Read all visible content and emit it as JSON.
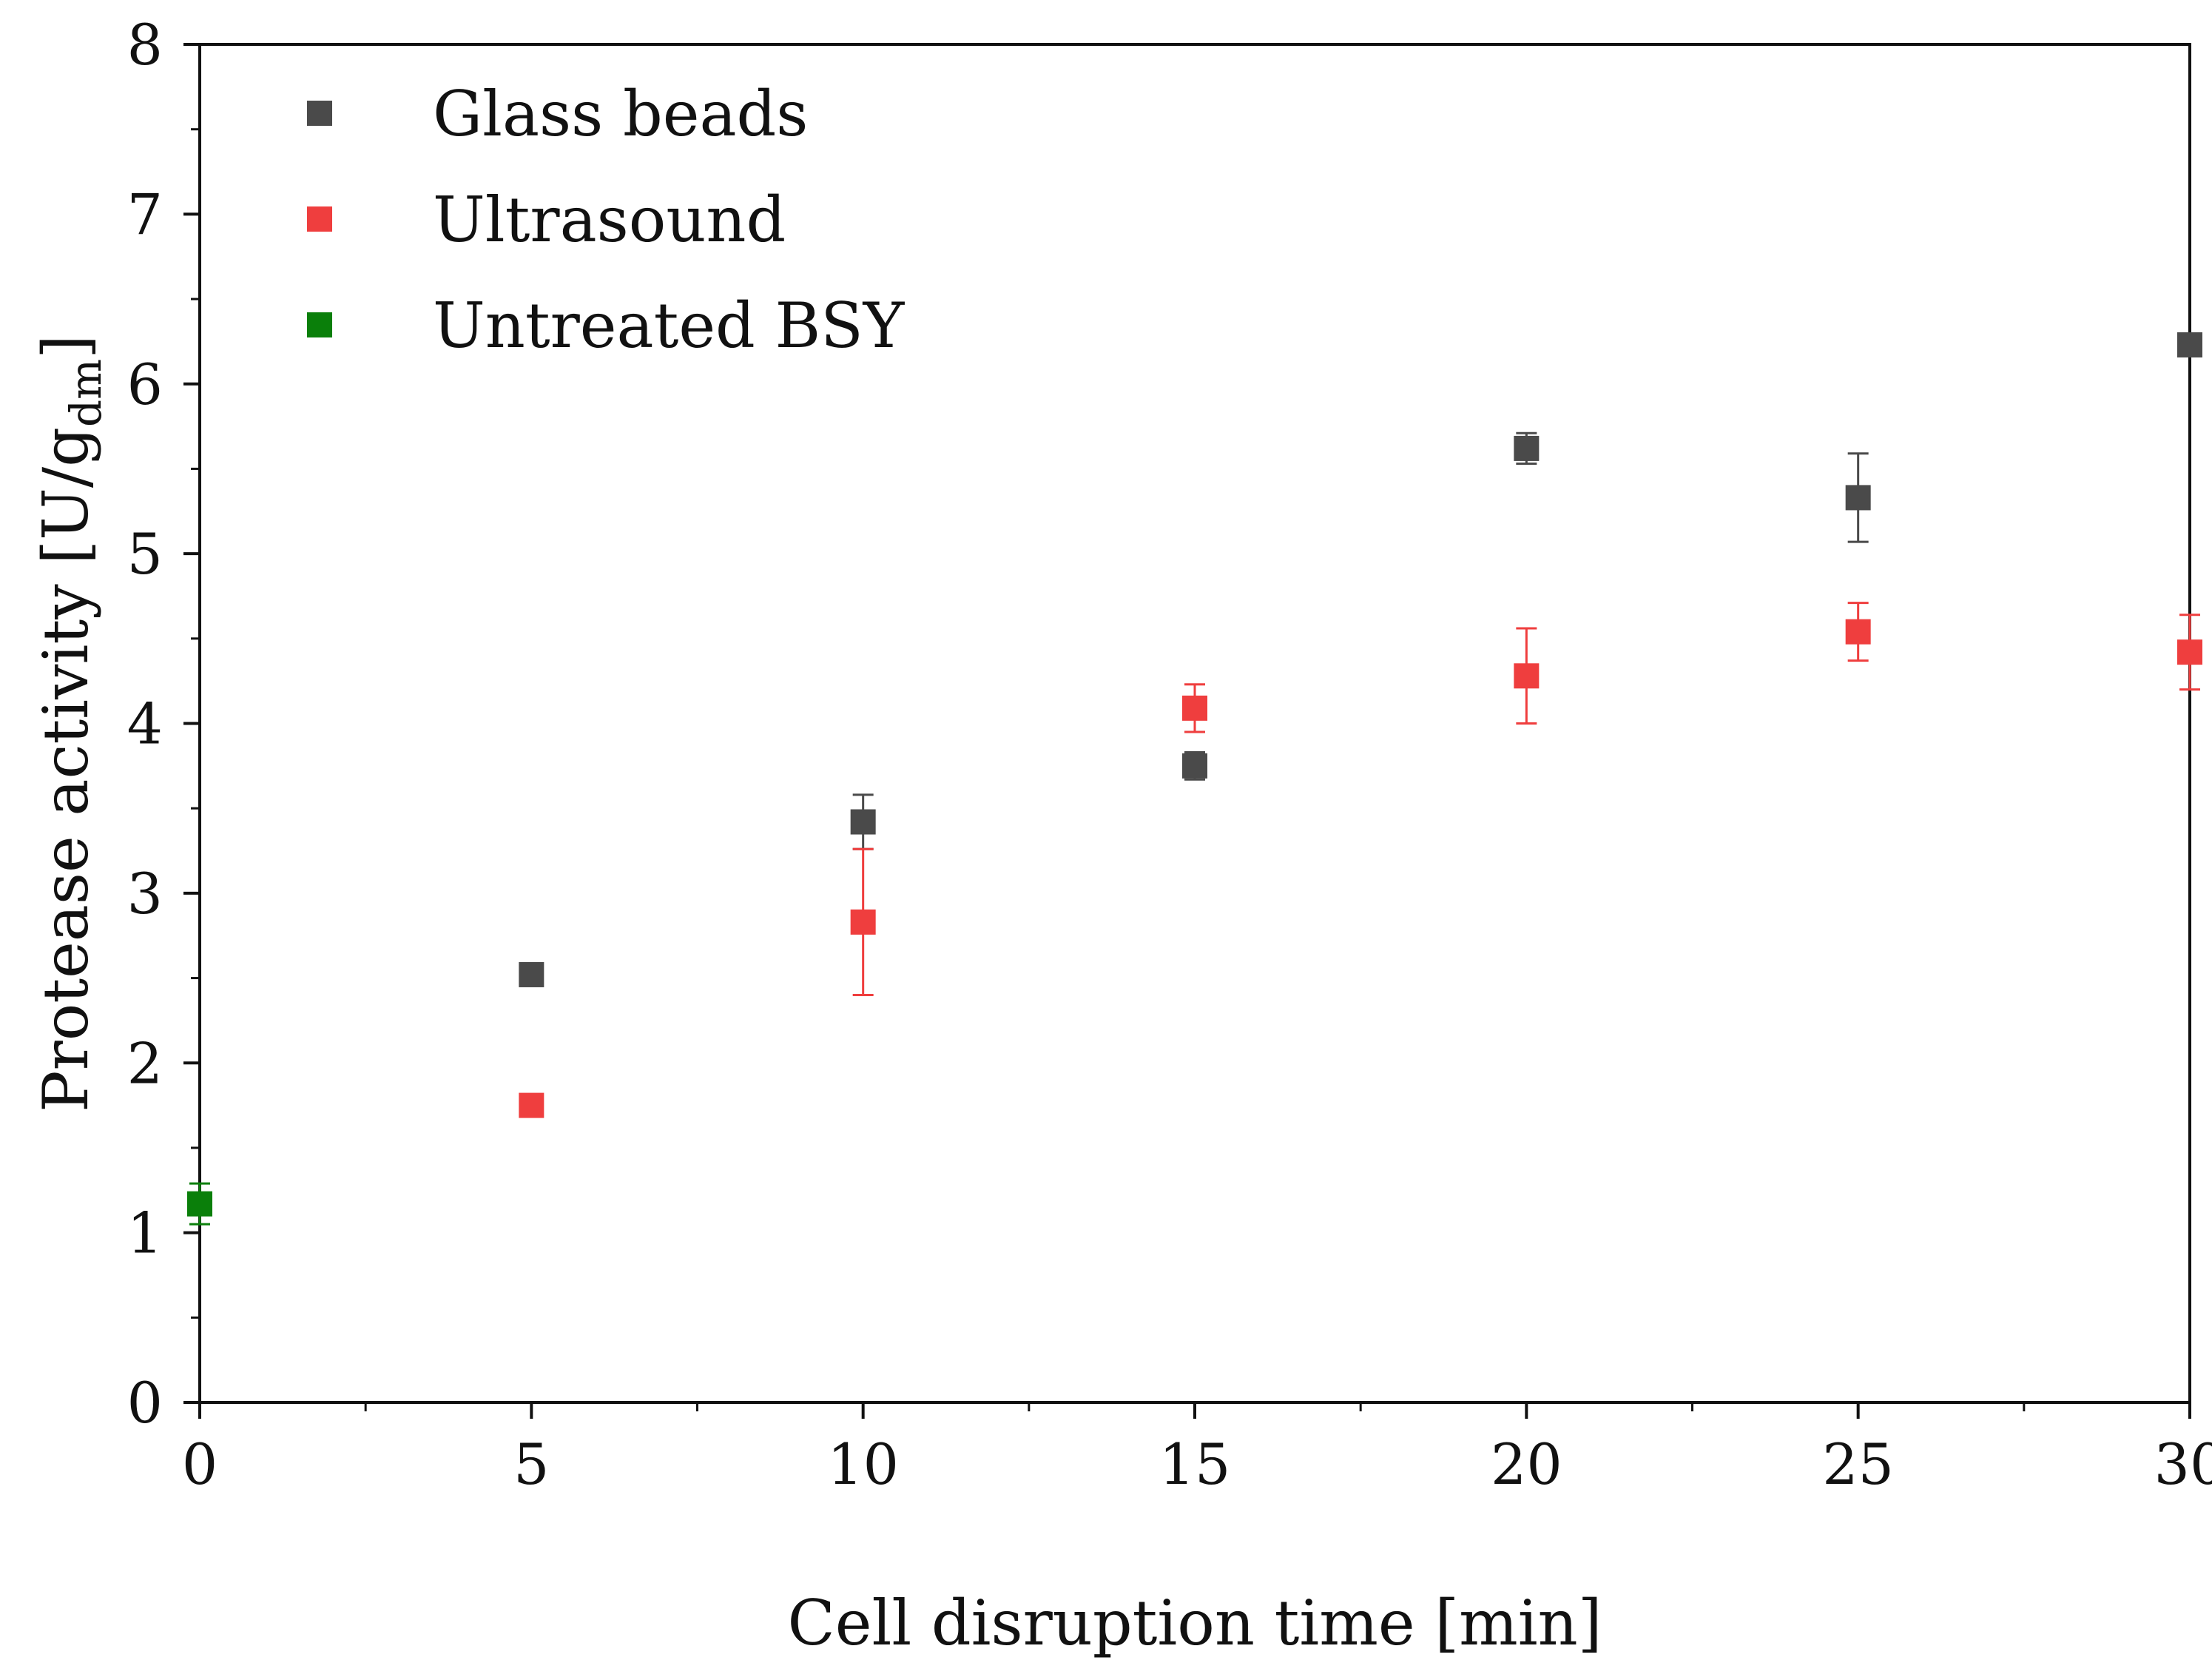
{
  "chart_data": {
    "type": "scatter",
    "title": "",
    "xlabel": "Cell disruption time [min]",
    "ylabel": {
      "main": "Protease activity [U/g",
      "subscript": "dm",
      "suffix": "]"
    },
    "xlim": [
      0,
      30
    ],
    "ylim": [
      0,
      8
    ],
    "x_ticks": [
      0,
      5,
      10,
      15,
      20,
      25,
      30
    ],
    "x_tick_labels": [
      "0",
      "5",
      "10",
      "15",
      "20",
      "25",
      "30"
    ],
    "y_ticks": [
      0,
      1,
      2,
      3,
      4,
      5,
      6,
      7,
      8
    ],
    "y_tick_labels": [
      "0",
      "1",
      "2",
      "3",
      "4",
      "5",
      "6",
      "7",
      "8"
    ],
    "grid": false,
    "legend_position": "top-left",
    "series": [
      {
        "name": "Glass beads",
        "color": "#4a4a4a",
        "x": [
          5,
          10,
          15,
          20,
          25,
          30
        ],
        "y": [
          2.52,
          3.42,
          3.75,
          5.62,
          5.33,
          6.23
        ],
        "err": [
          0.05,
          0.16,
          0.08,
          0.09,
          0.26,
          0.05
        ]
      },
      {
        "name": "Ultrasound",
        "color": "#ef3e3e",
        "x": [
          5,
          10,
          15,
          20,
          25,
          30
        ],
        "y": [
          1.75,
          2.83,
          4.09,
          4.28,
          4.54,
          4.42
        ],
        "err": [
          0.04,
          0.43,
          0.14,
          0.28,
          0.17,
          0.22
        ]
      },
      {
        "name": "Untreated BSY",
        "color": "#0a7f0a",
        "x": [
          0
        ],
        "y": [
          1.17
        ],
        "err": [
          0.12
        ]
      }
    ]
  }
}
